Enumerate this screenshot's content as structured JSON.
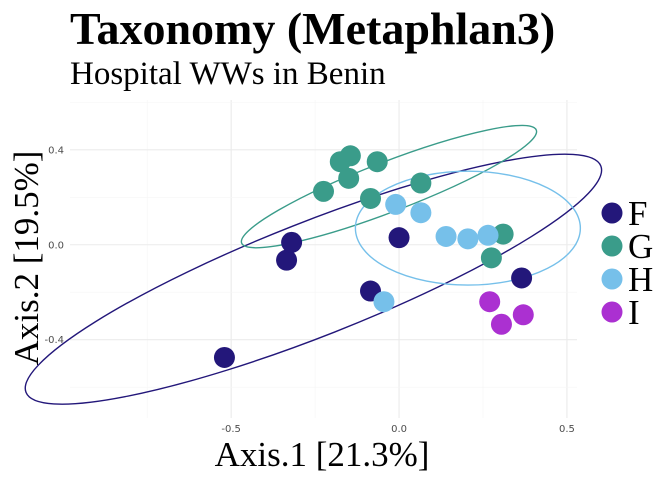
{
  "chart_data": {
    "type": "scatter",
    "title": "Taxonomy (Metaphlan3)",
    "subtitle": "Hospital WWs in Benin",
    "xlabel": "Axis.1   [21.3%]",
    "ylabel": "Axis.2   [19.5%]",
    "xlim": [
      -0.98,
      0.53
    ],
    "ylim": [
      -0.73,
      0.61
    ],
    "x_ticks": [
      -0.5,
      0.0,
      0.5
    ],
    "x_tick_labels": [
      "-0.5",
      "0.0",
      "0.5"
    ],
    "y_ticks": [
      -0.4,
      0.0,
      0.4
    ],
    "y_tick_labels": [
      "-0.4",
      "0.0",
      "0.4"
    ],
    "grid": true,
    "legend_position": "right",
    "series": [
      {
        "name": "F",
        "color": "#23177a",
        "points": [
          {
            "x": -0.52,
            "y": -0.475
          },
          {
            "x": -0.335,
            "y": -0.065
          },
          {
            "x": -0.32,
            "y": 0.01
          },
          {
            "x": -0.085,
            "y": -0.195
          },
          {
            "x": 0.0,
            "y": 0.03
          },
          {
            "x": 0.365,
            "y": -0.14
          }
        ],
        "ellipse": {
          "cx": -0.255,
          "cy": -0.145,
          "rx": 0.92,
          "ry": 0.24,
          "angle_deg": 21.5
        }
      },
      {
        "name": "G",
        "color": "#3a9c8a",
        "points": [
          {
            "x": -0.225,
            "y": 0.225
          },
          {
            "x": -0.175,
            "y": 0.35
          },
          {
            "x": -0.145,
            "y": 0.375
          },
          {
            "x": -0.15,
            "y": 0.28
          },
          {
            "x": -0.085,
            "y": 0.195
          },
          {
            "x": -0.065,
            "y": 0.35
          },
          {
            "x": 0.065,
            "y": 0.26
          },
          {
            "x": 0.275,
            "y": -0.055
          },
          {
            "x": 0.31,
            "y": 0.045
          }
        ],
        "ellipse": {
          "cx": -0.03,
          "cy": 0.245,
          "rx": 0.47,
          "ry": 0.105,
          "angle_deg": 21
        }
      },
      {
        "name": "H",
        "color": "#76c0ea",
        "points": [
          {
            "x": -0.045,
            "y": -0.24
          },
          {
            "x": -0.01,
            "y": 0.17
          },
          {
            "x": 0.065,
            "y": 0.135
          },
          {
            "x": 0.14,
            "y": 0.035
          },
          {
            "x": 0.205,
            "y": 0.025
          },
          {
            "x": 0.265,
            "y": 0.04
          }
        ],
        "ellipse": {
          "cx": 0.205,
          "cy": 0.07,
          "rx": 0.335,
          "ry": 0.24,
          "angle_deg": 0
        }
      },
      {
        "name": "I",
        "color": "#ab30d1",
        "points": [
          {
            "x": 0.27,
            "y": -0.24
          },
          {
            "x": 0.305,
            "y": -0.335
          },
          {
            "x": 0.37,
            "y": -0.295
          }
        ]
      }
    ]
  }
}
